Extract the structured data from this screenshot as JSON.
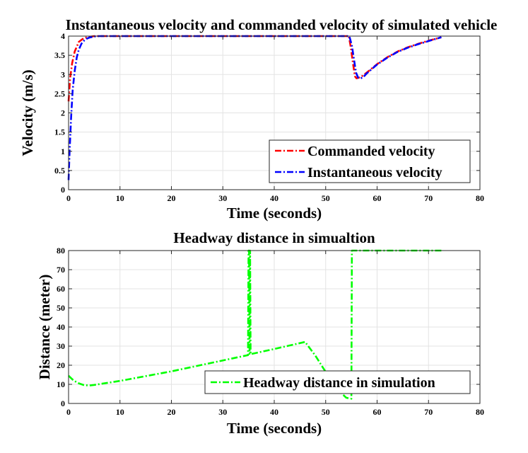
{
  "chart_data": [
    {
      "type": "line",
      "title": "Instantaneous velocity and commanded velocity of simulated vehicle",
      "xlabel": "Time (seconds)",
      "ylabel": "Velocity (m/s)",
      "xlim": [
        0,
        80
      ],
      "ylim": [
        0,
        4
      ],
      "xticks": [
        "0",
        "10",
        "20",
        "30",
        "40",
        "50",
        "60",
        "70",
        "80"
      ],
      "yticks": [
        "0",
        "0.5",
        "1",
        "1.5",
        "2",
        "2.5",
        "3",
        "3.5",
        "4"
      ],
      "grid": true,
      "legend_position": "bottom-right",
      "series": [
        {
          "name": "Commanded velocity",
          "color": "#ff0000",
          "style": "dashdot",
          "x": [
            0,
            0.3,
            0.7,
            1.2,
            2,
            3,
            4,
            5,
            6,
            10,
            20,
            30,
            40,
            50,
            54.5,
            54.9,
            55.3,
            55.7,
            56,
            56.5,
            57,
            58,
            60,
            62,
            64,
            66,
            68,
            70,
            72.5
          ],
          "y": [
            2.3,
            2.9,
            3.3,
            3.6,
            3.85,
            3.95,
            3.98,
            4,
            4,
            4,
            4,
            4,
            4,
            4,
            4,
            3.7,
            3.3,
            2.95,
            2.9,
            2.92,
            2.95,
            3.05,
            3.27,
            3.45,
            3.6,
            3.71,
            3.8,
            3.88,
            3.97
          ]
        },
        {
          "name": "Instantaneous velocity",
          "color": "#0000ff",
          "style": "dashdot",
          "x": [
            0,
            0.2,
            0.5,
            0.8,
            1.2,
            1.6,
            2,
            2.5,
            3,
            3.5,
            4,
            5,
            6,
            10,
            20,
            30,
            40,
            50,
            54.6,
            55.1,
            55.5,
            55.9,
            56.3,
            56.8,
            57.3,
            58,
            60,
            62,
            64,
            66,
            68,
            70,
            72.5
          ],
          "y": [
            0.25,
            1.0,
            1.9,
            2.6,
            3.1,
            3.45,
            3.65,
            3.8,
            3.88,
            3.93,
            3.96,
            3.99,
            4,
            4,
            4,
            4,
            4,
            4,
            4,
            3.75,
            3.4,
            3.05,
            2.92,
            2.9,
            2.93,
            3.03,
            3.26,
            3.44,
            3.59,
            3.7,
            3.79,
            3.87,
            3.97
          ]
        }
      ]
    },
    {
      "type": "line",
      "title": "Headway distance in simualtion",
      "xlabel": "Time (seconds)",
      "ylabel": "Distance (meter)",
      "xlim": [
        0,
        80
      ],
      "ylim": [
        0,
        80
      ],
      "xticks": [
        "0",
        "10",
        "20",
        "30",
        "40",
        "50",
        "60",
        "70",
        "80"
      ],
      "yticks": [
        "0",
        "10",
        "20",
        "30",
        "40",
        "50",
        "60",
        "70",
        "80"
      ],
      "grid": true,
      "legend_position": "bottom-right",
      "series": [
        {
          "name": "Headway distance in simulation",
          "color": "#00ff00",
          "style": "dashdot",
          "x": [
            0,
            0.5,
            1,
            2,
            3,
            4,
            5,
            10,
            20,
            30,
            34.9,
            35.0,
            35.1,
            35.2,
            35.3,
            35.4,
            40,
            46,
            48,
            50,
            52,
            53,
            54,
            54.8,
            55.0,
            55.1,
            55.2,
            55.3,
            55.5,
            60,
            65,
            70,
            72.5
          ],
          "y": [
            14.5,
            13.2,
            12.0,
            10.5,
            9.6,
            9.4,
            9.7,
            11.8,
            16.8,
            22.5,
            25.3,
            80,
            80,
            26,
            80,
            25.8,
            28.5,
            32.2,
            25,
            16.5,
            9,
            5.5,
            3,
            2.5,
            2.5,
            80,
            80,
            80,
            80,
            80,
            80,
            80,
            80
          ]
        }
      ]
    }
  ]
}
